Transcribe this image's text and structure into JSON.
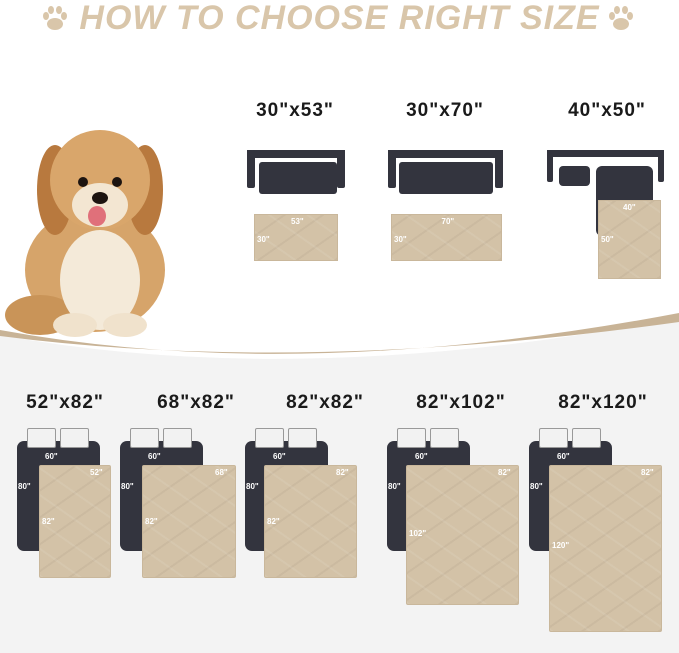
{
  "title": "HOW TO CHOOSE RIGHT SIZE",
  "icons": {
    "title_left": "paw-icon",
    "title_right": "paw-icon"
  },
  "colors": {
    "title": "#d9c6aa",
    "mat": "#d3c2a7",
    "furniture": "#33343e",
    "swoosh": "#c8b396",
    "lower_bg": "#f3f3f3"
  },
  "sofa_sizes": [
    {
      "label": "30\"x53\"",
      "width": "53\"",
      "height": "30\""
    },
    {
      "label": "30\"x70\"",
      "width": "70\"",
      "height": "30\""
    },
    {
      "label": "40\"x50\"",
      "width": "40\"",
      "height": "50\""
    }
  ],
  "bed_sizes": [
    {
      "label": "52\"x82\"",
      "bed_width": "60\"",
      "bed_length": "80\"",
      "width": "52\"",
      "height": "82\""
    },
    {
      "label": "68\"x82\"",
      "bed_width": "60\"",
      "bed_length": "80\"",
      "width": "68\"",
      "height": "82\""
    },
    {
      "label": "82\"x82\"",
      "bed_width": "60\"",
      "bed_length": "80\"",
      "width": "82\"",
      "height": "82\""
    },
    {
      "label": "82\"x102\"",
      "bed_width": "60\"",
      "bed_length": "80\"",
      "width": "82\"",
      "height": "102\""
    },
    {
      "label": "82\"x120\"",
      "bed_width": "60\"",
      "bed_length": "80\"",
      "width": "82\"",
      "height": "120\""
    }
  ]
}
